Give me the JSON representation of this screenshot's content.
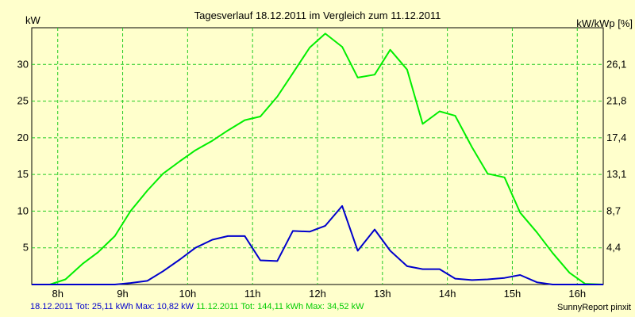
{
  "chart_data": {
    "type": "line",
    "title": "Tagesverlauf 18.12.2011 im Vergleich zum 11.12.2011",
    "ylabel_left": "kW",
    "ylabel_right": "kW/kWp [%]",
    "ylim": [
      0,
      35
    ],
    "xlim": [
      7.6,
      16.4
    ],
    "left_ticks": [
      5,
      10,
      15,
      20,
      25,
      30
    ],
    "right_ticks": [
      {
        "at": 5,
        "label": "4,4"
      },
      {
        "at": 10,
        "label": "8,7"
      },
      {
        "at": 15,
        "label": "13,1"
      },
      {
        "at": 20,
        "label": "17,4"
      },
      {
        "at": 25,
        "label": "21,8"
      },
      {
        "at": 30,
        "label": "26,1"
      }
    ],
    "x_ticks": [
      {
        "at": 8,
        "label": "8h"
      },
      {
        "at": 9,
        "label": "9h"
      },
      {
        "at": 10,
        "label": "10h"
      },
      {
        "at": 11,
        "label": "11h"
      },
      {
        "at": 12,
        "label": "12h"
      },
      {
        "at": 13,
        "label": "13h"
      },
      {
        "at": 14,
        "label": "14h"
      },
      {
        "at": 15,
        "label": "15h"
      },
      {
        "at": 16,
        "label": "16h"
      }
    ],
    "grid": true,
    "series": [
      {
        "name": "11.12.2011",
        "color": "#00ee00",
        "points": [
          [
            7.6,
            0
          ],
          [
            7.88,
            0
          ],
          [
            8.12,
            0.7
          ],
          [
            8.38,
            2.8
          ],
          [
            8.62,
            4.4
          ],
          [
            8.88,
            6.6
          ],
          [
            9.12,
            10
          ],
          [
            9.38,
            12.8
          ],
          [
            9.62,
            15.1
          ],
          [
            9.88,
            16.8
          ],
          [
            10.12,
            18.3
          ],
          [
            10.38,
            19.6
          ],
          [
            10.62,
            21
          ],
          [
            10.88,
            22.4
          ],
          [
            11.12,
            22.9
          ],
          [
            11.38,
            25.6
          ],
          [
            11.62,
            28.8
          ],
          [
            11.88,
            32.3
          ],
          [
            12.12,
            34.2
          ],
          [
            12.38,
            32.4
          ],
          [
            12.62,
            28.2
          ],
          [
            12.88,
            28.6
          ],
          [
            13.12,
            32
          ],
          [
            13.38,
            29.3
          ],
          [
            13.62,
            21.9
          ],
          [
            13.88,
            23.6
          ],
          [
            14.12,
            23
          ],
          [
            14.38,
            18.7
          ],
          [
            14.62,
            15.1
          ],
          [
            14.88,
            14.6
          ],
          [
            15.12,
            9.8
          ],
          [
            15.38,
            7.1
          ],
          [
            15.62,
            4.3
          ],
          [
            15.88,
            1.6
          ],
          [
            16.12,
            0.1
          ],
          [
            16.4,
            0
          ]
        ]
      },
      {
        "name": "18.12.2011",
        "color": "#0000cc",
        "points": [
          [
            7.6,
            0
          ],
          [
            8.88,
            0
          ],
          [
            9.12,
            0.2
          ],
          [
            9.38,
            0.5
          ],
          [
            9.62,
            1.8
          ],
          [
            9.88,
            3.4
          ],
          [
            10.12,
            5
          ],
          [
            10.38,
            6.1
          ],
          [
            10.62,
            6.6
          ],
          [
            10.88,
            6.6
          ],
          [
            11.12,
            3.3
          ],
          [
            11.38,
            3.2
          ],
          [
            11.62,
            7.3
          ],
          [
            11.88,
            7.2
          ],
          [
            12.12,
            8
          ],
          [
            12.38,
            10.7
          ],
          [
            12.62,
            4.6
          ],
          [
            12.88,
            7.5
          ],
          [
            13.12,
            4.6
          ],
          [
            13.38,
            2.5
          ],
          [
            13.62,
            2.1
          ],
          [
            13.88,
            2.1
          ],
          [
            14.12,
            0.8
          ],
          [
            14.38,
            0.6
          ],
          [
            14.62,
            0.7
          ],
          [
            14.88,
            0.9
          ],
          [
            15.12,
            1.3
          ],
          [
            15.38,
            0.3
          ],
          [
            15.62,
            0
          ],
          [
            16.4,
            0
          ]
        ]
      }
    ]
  },
  "footer": {
    "blue_text": "18.12.2011 Tot: 25,11 kWh Max: 10,82 kW",
    "green_text": "11.12.2011 Tot: 144,11 kWh Max: 34,52 kW",
    "credit": "SunnyReport pinxit",
    "blue_color": "#0000cc",
    "green_color": "#00cc00"
  }
}
